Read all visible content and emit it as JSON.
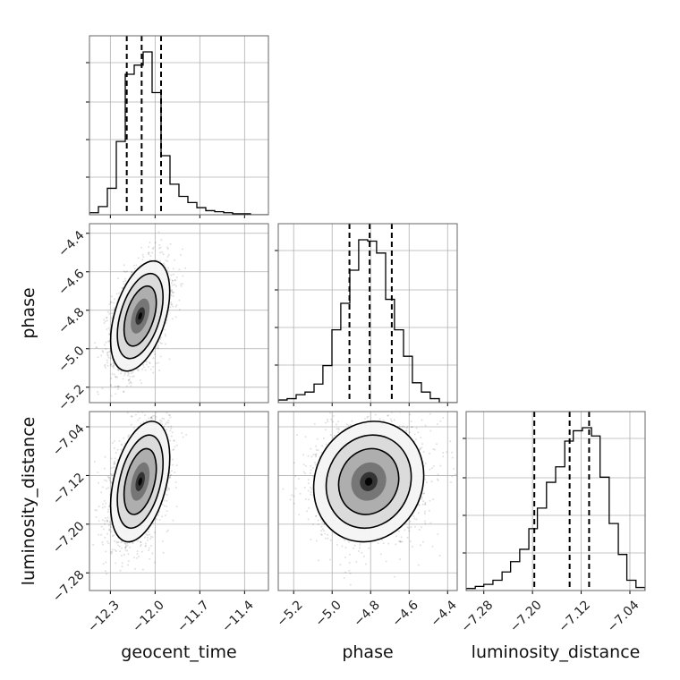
{
  "chart_data": {
    "type": "corner",
    "parameters": [
      "geocent_time",
      "phase",
      "luminosity_distance"
    ],
    "axis_labels": {
      "x": [
        "geocent_time",
        "phase",
        "luminosity_distance"
      ],
      "y": [
        "",
        "phase",
        "luminosity_distance"
      ]
    },
    "grid": true,
    "quantile_lines_style": "dashed",
    "ranges": {
      "geocent_time": [
        -12.44,
        -11.24
      ],
      "phase": [
        -5.28,
        -4.35
      ],
      "luminosity_distance": [
        -7.309,
        -7.015
      ]
    },
    "ticks": {
      "geocent_time": {
        "values": [
          -12.3,
          -12.0,
          -11.7,
          -11.4
        ],
        "labels": [
          "−12.3",
          "−12.0",
          "−11.7",
          "−11.4"
        ]
      },
      "phase": {
        "values": [
          -5.2,
          -5.0,
          -4.8,
          -4.6,
          -4.4
        ],
        "labels": [
          "−5.2",
          "−5.0",
          "−4.8",
          "−4.6",
          "−4.4"
        ]
      },
      "luminosity_distance": {
        "values": [
          -7.28,
          -7.2,
          -7.12,
          -7.04
        ],
        "labels": [
          "−7.28",
          "−7.20",
          "−7.12",
          "−7.04"
        ]
      }
    },
    "marginals": [
      {
        "parameter": "geocent_time",
        "bin_edges": [
          -12.44,
          -12.38,
          -12.32,
          -12.26,
          -12.2,
          -12.14,
          -12.08,
          -12.02,
          -11.96,
          -11.9,
          -11.84,
          -11.78,
          -11.72,
          -11.66,
          -11.6,
          -11.54,
          -11.48,
          -11.42,
          -11.36,
          -11.3,
          -11.24
        ],
        "counts": [
          2,
          8,
          26,
          72,
          138,
          147,
          160,
          120,
          58,
          30,
          18,
          12,
          7,
          4,
          3,
          2,
          1,
          1,
          0,
          0
        ],
        "quantiles": [
          -12.19,
          -12.09,
          -11.96
        ]
      },
      {
        "parameter": "phase",
        "bin_edges": [
          -5.28,
          -5.234,
          -5.187,
          -5.141,
          -5.094,
          -5.048,
          -5.001,
          -4.955,
          -4.908,
          -4.862,
          -4.815,
          -4.769,
          -4.722,
          -4.676,
          -4.629,
          -4.583,
          -4.536,
          -4.49,
          -4.443,
          -4.397,
          -4.35
        ],
        "counts": [
          2,
          3,
          6,
          8,
          14,
          28,
          55,
          75,
          100,
          123,
          122,
          113,
          78,
          55,
          35,
          15,
          8,
          3,
          0,
          0
        ],
        "quantiles": [
          -4.91,
          -4.805,
          -4.69
        ]
      },
      {
        "parameter": "luminosity_distance",
        "bin_edges": [
          -7.309,
          -7.294,
          -7.28,
          -7.265,
          -7.25,
          -7.236,
          -7.221,
          -7.206,
          -7.192,
          -7.177,
          -7.162,
          -7.147,
          -7.133,
          -7.118,
          -7.103,
          -7.089,
          -7.074,
          -7.059,
          -7.045,
          -7.03,
          -7.015
        ],
        "counts": [
          2,
          4,
          6,
          10,
          18,
          28,
          40,
          60,
          80,
          105,
          120,
          145,
          155,
          158,
          150,
          110,
          65,
          35,
          10,
          3
        ],
        "quantiles": [
          -7.197,
          -7.139,
          -7.107
        ]
      }
    ],
    "joint": [
      {
        "x": "geocent_time",
        "y": "phase",
        "center": [
          -12.1,
          -4.83
        ],
        "sd": [
          0.09,
          0.13
        ],
        "correlation": 0.45
      },
      {
        "x": "geocent_time",
        "y": "luminosity_distance",
        "center": [
          -12.1,
          -7.13
        ],
        "sd": [
          0.09,
          0.045
        ],
        "correlation": 0.4
      },
      {
        "x": "phase",
        "y": "luminosity_distance",
        "center": [
          -4.81,
          -7.13
        ],
        "sd": [
          0.13,
          0.045
        ],
        "correlation": 0.1
      }
    ]
  }
}
